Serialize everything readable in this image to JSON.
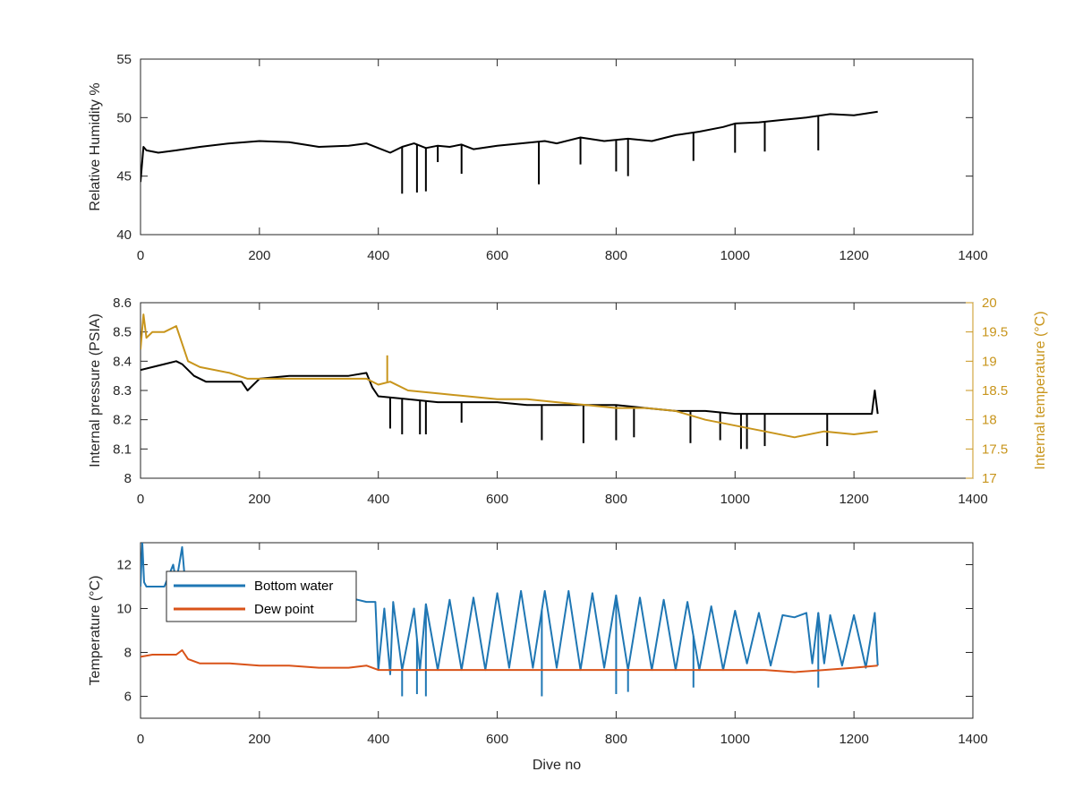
{
  "colors": {
    "black_series": "#000000",
    "internal_temperature": "#C8951C",
    "bottom_water": "#1F77B4",
    "dew_point": "#D95319",
    "axis": "#262626"
  },
  "chart_data": [
    {
      "type": "line",
      "xlabel": "",
      "ylabel": "Relative Humidity %",
      "xlim": [
        0,
        1400
      ],
      "ylim": [
        40,
        55
      ],
      "xticks": [
        "0",
        "200",
        "400",
        "600",
        "800",
        "1000",
        "1200",
        "1400"
      ],
      "yticks": [
        "40",
        "45",
        "50",
        "55"
      ],
      "grid": false,
      "series": [
        {
          "color": "#000000",
          "x": [
            0,
            5,
            10,
            30,
            60,
            100,
            150,
            200,
            250,
            300,
            350,
            380,
            400,
            420,
            440,
            460,
            480,
            500,
            520,
            540,
            560,
            600,
            640,
            680,
            700,
            740,
            780,
            820,
            860,
            900,
            940,
            980,
            1000,
            1040,
            1080,
            1120,
            1160,
            1200,
            1240
          ],
          "y": [
            44.5,
            47.5,
            47.2,
            47.0,
            47.2,
            47.5,
            47.8,
            48.0,
            47.9,
            47.5,
            47.6,
            47.8,
            47.4,
            47.0,
            47.5,
            47.8,
            47.4,
            47.6,
            47.5,
            47.7,
            47.3,
            47.6,
            47.8,
            48.0,
            47.8,
            48.3,
            48.0,
            48.2,
            48.0,
            48.5,
            48.8,
            49.2,
            49.5,
            49.6,
            49.8,
            50.0,
            50.3,
            50.2,
            50.5
          ]
        }
      ],
      "spikes": [
        [
          440,
          43.5
        ],
        [
          465,
          43.6
        ],
        [
          480,
          43.7
        ],
        [
          500,
          46.2
        ],
        [
          540,
          45.2
        ],
        [
          670,
          44.3
        ],
        [
          740,
          46.0
        ],
        [
          800,
          45.4
        ],
        [
          820,
          45.0
        ],
        [
          930,
          46.3
        ],
        [
          1000,
          47.0
        ],
        [
          1050,
          47.1
        ],
        [
          1140,
          47.2
        ]
      ]
    },
    {
      "type": "line",
      "xlabel": "",
      "ylabel": "Internal pressure (PSIA)",
      "ylabel_right": "Internal temperature (°C)",
      "xlim": [
        0,
        1400
      ],
      "ylim": [
        8,
        8.6
      ],
      "ylim_right": [
        17,
        20
      ],
      "xticks": [
        "0",
        "200",
        "400",
        "600",
        "800",
        "1000",
        "1200",
        "1400"
      ],
      "yticks": [
        "8",
        "8.1",
        "8.2",
        "8.3",
        "8.4",
        "8.5",
        "8.6"
      ],
      "yticks_right": [
        "17",
        "17.5",
        "18",
        "18.5",
        "19",
        "19.5",
        "20"
      ],
      "grid": false,
      "series": [
        {
          "color": "#000000",
          "axis": "left",
          "x": [
            0,
            20,
            40,
            60,
            70,
            90,
            110,
            150,
            170,
            180,
            200,
            250,
            300,
            350,
            380,
            390,
            400,
            450,
            500,
            550,
            600,
            650,
            700,
            750,
            800,
            850,
            900,
            950,
            1000,
            1050,
            1100,
            1150,
            1200,
            1230,
            1235,
            1240
          ],
          "y": [
            8.37,
            8.38,
            8.39,
            8.4,
            8.39,
            8.35,
            8.33,
            8.33,
            8.33,
            8.3,
            8.34,
            8.35,
            8.35,
            8.35,
            8.36,
            8.31,
            8.28,
            8.27,
            8.26,
            8.26,
            8.26,
            8.25,
            8.25,
            8.25,
            8.25,
            8.24,
            8.23,
            8.23,
            8.22,
            8.22,
            8.22,
            8.22,
            8.22,
            8.22,
            8.3,
            8.22
          ]
        },
        {
          "color": "#C8951C",
          "axis": "right",
          "x": [
            0,
            5,
            10,
            20,
            40,
            60,
            70,
            80,
            100,
            150,
            180,
            200,
            250,
            300,
            350,
            380,
            400,
            420,
            450,
            500,
            550,
            600,
            650,
            700,
            750,
            800,
            850,
            900,
            950,
            1000,
            1050,
            1100,
            1150,
            1200,
            1240
          ],
          "y": [
            19.2,
            19.8,
            19.4,
            19.5,
            19.5,
            19.6,
            19.3,
            19.0,
            18.9,
            18.8,
            18.7,
            18.7,
            18.7,
            18.7,
            18.7,
            18.7,
            18.6,
            18.65,
            18.5,
            18.45,
            18.4,
            18.35,
            18.35,
            18.3,
            18.25,
            18.2,
            18.2,
            18.15,
            18.0,
            17.9,
            17.8,
            17.7,
            17.8,
            17.75,
            17.8
          ]
        }
      ],
      "spikes": [
        [
          420,
          8.17
        ],
        [
          440,
          8.15
        ],
        [
          470,
          8.15
        ],
        [
          480,
          8.15
        ],
        [
          540,
          8.19
        ],
        [
          675,
          8.13
        ],
        [
          745,
          8.12
        ],
        [
          800,
          8.13
        ],
        [
          830,
          8.14
        ],
        [
          925,
          8.12
        ],
        [
          975,
          8.13
        ],
        [
          1010,
          8.1
        ],
        [
          1020,
          8.1
        ],
        [
          1050,
          8.11
        ],
        [
          1155,
          8.11
        ]
      ],
      "spikes_right": [
        [
          415,
          19.1
        ]
      ]
    },
    {
      "type": "line",
      "xlabel": "Dive no",
      "ylabel": "Temperature (°C)",
      "xlim": [
        0,
        1400
      ],
      "ylim": [
        5,
        13
      ],
      "xticks": [
        "0",
        "200",
        "400",
        "600",
        "800",
        "1000",
        "1200",
        "1400"
      ],
      "yticks": [
        "6",
        "8",
        "10",
        "12"
      ],
      "grid": false,
      "legend": "top-left",
      "series": [
        {
          "name": "Bottom water",
          "color": "#1F77B4",
          "x": [
            0,
            3,
            6,
            10,
            20,
            40,
            55,
            60,
            70,
            75,
            80,
            100,
            150,
            200,
            250,
            300,
            350,
            380,
            395,
            400,
            410,
            420,
            425,
            440,
            460,
            470,
            480,
            500,
            520,
            540,
            560,
            580,
            600,
            620,
            640,
            660,
            680,
            700,
            720,
            740,
            760,
            780,
            800,
            820,
            840,
            860,
            880,
            900,
            920,
            940,
            960,
            980,
            1000,
            1020,
            1040,
            1060,
            1080,
            1100,
            1120,
            1130,
            1140,
            1150,
            1160,
            1180,
            1200,
            1220,
            1235,
            1240
          ],
          "y": [
            11.0,
            13.0,
            11.2,
            11.0,
            11.0,
            11.0,
            12.0,
            11.2,
            12.8,
            11.2,
            11.0,
            10.8,
            10.8,
            10.6,
            10.5,
            10.5,
            10.5,
            10.3,
            10.3,
            7.2,
            10.0,
            7.0,
            10.3,
            7.2,
            10.0,
            7.2,
            10.2,
            7.2,
            10.4,
            7.2,
            10.5,
            7.2,
            10.7,
            7.3,
            10.8,
            7.3,
            10.8,
            7.3,
            10.8,
            7.2,
            10.7,
            7.3,
            10.6,
            7.2,
            10.5,
            7.2,
            10.4,
            7.2,
            10.3,
            7.2,
            10.1,
            7.2,
            9.9,
            7.5,
            9.8,
            7.4,
            9.7,
            9.6,
            9.8,
            7.5,
            9.8,
            7.5,
            9.7,
            7.4,
            9.7,
            7.3,
            9.8,
            7.4
          ]
        },
        {
          "name": "Dew point",
          "color": "#D95319",
          "x": [
            0,
            20,
            40,
            60,
            70,
            80,
            100,
            150,
            200,
            250,
            300,
            350,
            380,
            400,
            450,
            500,
            550,
            600,
            650,
            700,
            750,
            800,
            850,
            900,
            950,
            1000,
            1050,
            1100,
            1150,
            1200,
            1240
          ],
          "y": [
            7.8,
            7.9,
            7.9,
            7.9,
            8.1,
            7.7,
            7.5,
            7.5,
            7.4,
            7.4,
            7.3,
            7.3,
            7.4,
            7.2,
            7.2,
            7.2,
            7.2,
            7.2,
            7.2,
            7.2,
            7.2,
            7.2,
            7.2,
            7.2,
            7.2,
            7.2,
            7.2,
            7.1,
            7.2,
            7.3,
            7.4
          ]
        }
      ],
      "spikes": [
        [
          440,
          6.0
        ],
        [
          465,
          6.1
        ],
        [
          480,
          6.0
        ],
        [
          675,
          6.0
        ],
        [
          800,
          6.1
        ],
        [
          820,
          6.2
        ],
        [
          930,
          6.4
        ],
        [
          1140,
          6.4
        ]
      ]
    }
  ]
}
